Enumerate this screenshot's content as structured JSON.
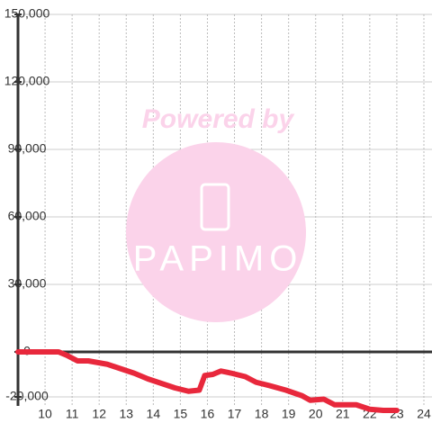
{
  "chart_data": {
    "type": "line",
    "watermark": [
      "Powered by",
      "PAPIMO"
    ],
    "x": [
      9.0,
      10.5,
      10.8,
      11.2,
      11.6,
      12.3,
      12.8,
      13.3,
      13.8,
      14.3,
      14.8,
      15.3,
      15.7,
      15.9,
      16.2,
      16.5,
      16.9,
      17.4,
      17.8,
      18.3,
      18.9,
      19.5,
      19.8,
      20.3,
      20.7,
      21.5,
      22.0,
      22.5,
      23.0
    ],
    "series": [
      {
        "color": "#e8283c",
        "values": [
          0,
          0,
          -1500,
          -4000,
          -4000,
          -5500,
          -7500,
          -9500,
          -12000,
          -14000,
          -16000,
          -17500,
          -17000,
          -10500,
          -10000,
          -8500,
          -9500,
          -11000,
          -13500,
          -15000,
          -17000,
          -19500,
          -21500,
          -21000,
          -23500,
          -23500,
          -25500,
          -26000,
          -26000
        ]
      }
    ],
    "xlim": [
      9.0,
      24.3
    ],
    "ylim": [
      -30000,
      150000
    ],
    "xticks": [
      10,
      11,
      12,
      13,
      14,
      15,
      16,
      17,
      18,
      19,
      20,
      21,
      22,
      23,
      24
    ],
    "yticks": [
      {
        "value": -20000,
        "label": "-20,000"
      },
      0,
      {
        "value": 30000,
        "label": "30,000"
      },
      {
        "value": 60000,
        "label": "60,000"
      },
      {
        "value": 90000,
        "label": "90,000"
      },
      {
        "value": 120000,
        "label": "120,000"
      },
      {
        "value": 150000,
        "label": "150,000"
      }
    ],
    "grid": true
  }
}
